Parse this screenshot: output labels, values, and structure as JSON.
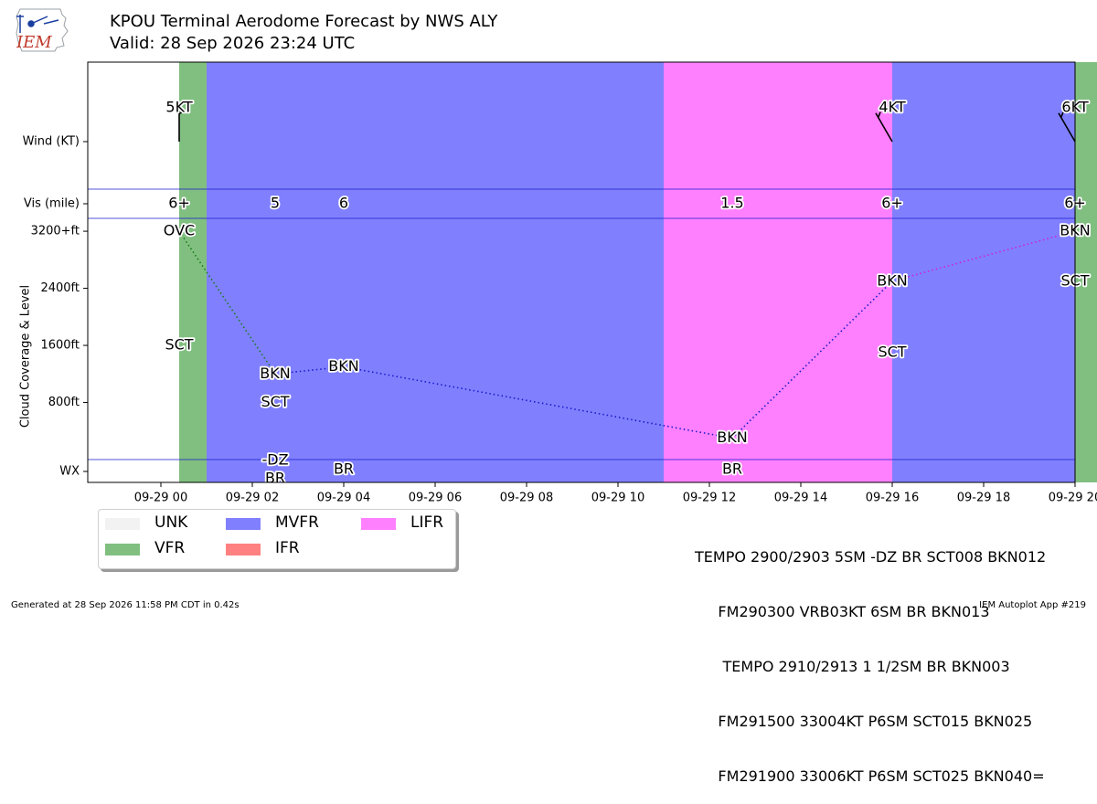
{
  "header": {
    "logo_text": "IEM",
    "title": "KPOU Terminal Aerodome Forecast by NWS ALY",
    "valid": "Valid: 28 Sep 2026 23:24 UTC"
  },
  "chart_data": {
    "type": "timeline",
    "x_range_hours_from_2026_09_28T23_00Z": [
      -1.6,
      20
    ],
    "x_ticks": [
      "09-29 00",
      "09-29 02",
      "09-29 04",
      "09-29 06",
      "09-29 08",
      "09-29 10",
      "09-29 12",
      "09-29 14",
      "09-29 16",
      "09-29 18",
      "09-29 20"
    ],
    "y_rows": {
      "wind_label": "Wind (KT)",
      "vis_label": "Vis (mile)",
      "wx_label": "WX",
      "cloud_axis_label": "Cloud Coverage & Level",
      "cloud_ticks": [
        {
          "value": 800,
          "label": "800ft"
        },
        {
          "value": 1600,
          "label": "1600ft"
        },
        {
          "value": 2400,
          "label": "2400ft"
        },
        {
          "value": 3200,
          "label": "3200+ft"
        }
      ]
    },
    "category_colors": {
      "UNK": "#f2f2f2",
      "VFR": "#80bf80",
      "MVFR": "#8080ff",
      "IFR": "#ff8080",
      "LIFR": "#ff80ff"
    },
    "legend": [
      {
        "key": "UNK",
        "label": "UNK"
      },
      {
        "key": "VFR",
        "label": "VFR"
      },
      {
        "key": "MVFR",
        "label": "MVFR"
      },
      {
        "key": "IFR",
        "label": "IFR"
      },
      {
        "key": "LIFR",
        "label": "LIFR"
      }
    ],
    "periods": [
      {
        "start": "2026-09-28 23:24",
        "end": "2026-09-29 00:00",
        "category": "VFR"
      },
      {
        "start": "2026-09-29 00:00",
        "end": "2026-09-29 10:00",
        "category": "MVFR"
      },
      {
        "start": "2026-09-29 10:00",
        "end": "2026-09-29 15:00",
        "category": "LIFR"
      },
      {
        "start": "2026-09-29 15:00",
        "end": "2026-09-29 19:00",
        "category": "MVFR"
      },
      {
        "start": "2026-09-29 19:00",
        "end": "2026-09-29 20:00",
        "category": "VFR"
      }
    ],
    "wind": [
      {
        "time": "2026-09-28 23:24",
        "dir_deg": 0,
        "speed_kt": 5,
        "label": "5KT"
      },
      {
        "time": "2026-09-29 15:00",
        "dir_deg": 330,
        "speed_kt": 4,
        "label": "4KT"
      },
      {
        "time": "2026-09-29 19:00",
        "dir_deg": 330,
        "speed_kt": 6,
        "label": "6KT"
      }
    ],
    "visibility": [
      {
        "time": "2026-09-28 23:24",
        "label": "6+"
      },
      {
        "time": "2026-09-29 01:30",
        "label": "5"
      },
      {
        "time": "2026-09-29 03:00",
        "label": "6"
      },
      {
        "time": "2026-09-29 11:30",
        "label": "1.5"
      },
      {
        "time": "2026-09-29 15:00",
        "label": "6+"
      },
      {
        "time": "2026-09-29 19:00",
        "label": "6+"
      }
    ],
    "clouds": [
      {
        "time": "2026-09-28 23:24",
        "cover": "SCT",
        "level_ft": 1600
      },
      {
        "time": "2026-09-28 23:24",
        "cover": "OVC",
        "level_ft": 3200
      },
      {
        "time": "2026-09-29 01:30",
        "cover": "SCT",
        "level_ft": 800
      },
      {
        "time": "2026-09-29 01:30",
        "cover": "BKN",
        "level_ft": 1200
      },
      {
        "time": "2026-09-29 03:00",
        "cover": "BKN",
        "level_ft": 1300
      },
      {
        "time": "2026-09-29 11:30",
        "cover": "BKN",
        "level_ft": 300
      },
      {
        "time": "2026-09-29 15:00",
        "cover": "SCT",
        "level_ft": 1500
      },
      {
        "time": "2026-09-29 15:00",
        "cover": "BKN",
        "level_ft": 2500
      },
      {
        "time": "2026-09-29 19:00",
        "cover": "SCT",
        "level_ft": 2500
      },
      {
        "time": "2026-09-29 19:00",
        "cover": "BKN",
        "level_ft": 3200
      }
    ],
    "ceiling_line": [
      {
        "time": "2026-09-28 23:24",
        "level_ft": 3200,
        "category": "VFR"
      },
      {
        "time": "2026-09-29 01:30",
        "level_ft": 1200,
        "category": "MVFR"
      },
      {
        "time": "2026-09-29 03:00",
        "level_ft": 1300,
        "category": "MVFR"
      },
      {
        "time": "2026-09-29 11:30",
        "level_ft": 300,
        "category": "MVFR"
      },
      {
        "time": "2026-09-29 15:00",
        "level_ft": 2500,
        "category": "LIFR"
      },
      {
        "time": "2026-09-29 19:00",
        "level_ft": 3200,
        "category": "MVFR"
      }
    ],
    "weather": [
      {
        "time": "2026-09-29 01:30",
        "lines": [
          "-DZ",
          "BR"
        ]
      },
      {
        "time": "2026-09-29 03:00",
        "lines": [
          "BR"
        ]
      },
      {
        "time": "2026-09-29 11:30",
        "lines": [
          "BR"
        ]
      }
    ]
  },
  "taf_text": [
    "TEMPO 2900/2903 5SM -DZ BR SCT008 BKN012",
    "     FM290300 VRB03KT 6SM BR BKN013",
    "      TEMPO 2910/2913 1 1/2SM BR BKN003",
    "     FM291500 33004KT P6SM SCT015 BKN025",
    "     FM291900 33006KT P6SM SCT025 BKN040="
  ],
  "footer": {
    "generated": "Generated at 28 Sep 2026 11:58 PM CDT in 0.42s",
    "app": "IEM Autoplot App #219"
  }
}
